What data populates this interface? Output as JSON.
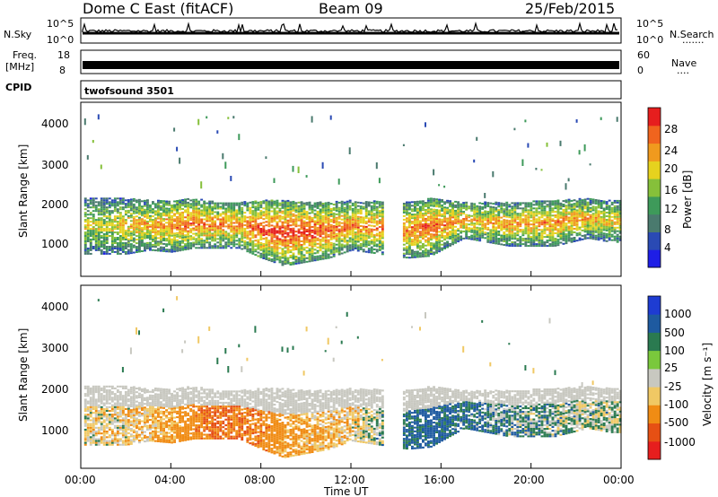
{
  "header": {
    "station": "Dome C East (fitACF)",
    "beam": "Beam 09",
    "date": "25/Feb/2015"
  },
  "sky_panel": {
    "left_label": "N.Sky",
    "right_label": "N.Search",
    "right_dots": ".......",
    "left_ticks": [
      "10^5",
      "10^0"
    ],
    "right_ticks": [
      "10^5",
      "10^0"
    ]
  },
  "freq_panel": {
    "left_label_1": "Freq.",
    "left_label_2": "[MHz]",
    "left_ticks": [
      "18",
      "8"
    ],
    "right_label": "Nave",
    "right_dots": "....",
    "right_ticks": [
      "60",
      "0"
    ]
  },
  "cpid_panel": {
    "left_label": "CPID",
    "program": "twofsound 3501"
  },
  "power_panel": {
    "ylabel": "Slant Range [km]",
    "yticks": [
      "4000",
      "3000",
      "2000",
      "1000"
    ],
    "colorbar_label": "Power [dB]",
    "colorbar_ticks": [
      "28",
      "24",
      "20",
      "16",
      "12",
      "8",
      "4"
    ]
  },
  "velocity_panel": {
    "ylabel": "Slant Range [km]",
    "yticks": [
      "4000",
      "3000",
      "2000",
      "1000"
    ],
    "colorbar_label": "Velocity  [m s⁻¹]",
    "colorbar_ticks": [
      "1000",
      "500",
      "100",
      "25",
      "-25",
      "-100",
      "-500",
      "-1000"
    ]
  },
  "x_axis": {
    "label": "Time UT",
    "ticks": [
      "00:00",
      "04:00",
      "08:00",
      "12:00",
      "16:00",
      "20:00",
      "00:00"
    ]
  },
  "chart_data": [
    {
      "type": "heatmap",
      "title": "Dome C East (fitACF)",
      "xlabel": "Time UT",
      "ylabel": "Slant Range [km]",
      "colorbar": "Power [dB]",
      "xlim_hours": [
        0,
        24
      ],
      "ylim": [
        200,
        4500
      ],
      "zlim": [
        0,
        30
      ],
      "colors": [
        "#1e1ee6",
        "#2a4ab4",
        "#4a7a6e",
        "#3e9a5a",
        "#86c03a",
        "#e6d21e",
        "#f09a1e",
        "#f0641e",
        "#e61e1e"
      ],
      "hours": [
        1,
        2,
        3,
        4,
        5,
        6,
        7,
        8,
        9,
        10,
        11,
        12,
        14.5,
        15.5,
        17,
        19,
        21,
        22.5,
        23.5
      ],
      "echo_top_km": [
        2100,
        2100,
        2050,
        2050,
        2100,
        2000,
        2000,
        2050,
        2050,
        2000,
        2000,
        2050,
        2000,
        2100,
        2000,
        2000,
        2050,
        2100,
        2050
      ],
      "echo_bottom_km": [
        700,
        700,
        800,
        750,
        850,
        850,
        850,
        600,
        400,
        500,
        600,
        800,
        600,
        650,
        1100,
        900,
        900,
        1100,
        1000
      ],
      "peak_power_db": [
        18,
        20,
        22,
        24,
        26,
        24,
        24,
        28,
        28,
        28,
        26,
        24,
        24,
        26,
        22,
        22,
        24,
        22,
        20
      ],
      "data_gap_hours": [
        13.4,
        14.2
      ]
    },
    {
      "type": "heatmap",
      "title": "Dome C East (fitACF)",
      "xlabel": "Time UT",
      "ylabel": "Slant Range [km]",
      "colorbar": "Velocity  [m s⁻¹]",
      "xlim_hours": [
        0,
        24
      ],
      "ylim": [
        200,
        4500
      ],
      "zlim": [
        -1000,
        1000
      ],
      "colors": [
        "#1e3cd2",
        "#1e5aa0",
        "#2a7a50",
        "#7ac83c",
        "#c8c8c0",
        "#f0c864",
        "#f08c14",
        "#e65014",
        "#e61e1e"
      ],
      "hours": [
        1,
        2,
        3,
        4,
        5,
        6,
        7,
        8,
        9,
        10,
        11,
        12,
        14.5,
        15.5,
        17,
        19,
        21,
        22.5,
        23.5
      ],
      "echo_top_km": [
        2100,
        2100,
        2050,
        2050,
        2100,
        2000,
        2000,
        2050,
        2050,
        2000,
        2000,
        2050,
        2000,
        2100,
        2000,
        2000,
        2050,
        2100,
        2050
      ],
      "echo_bottom_km": [
        700,
        700,
        800,
        750,
        850,
        850,
        850,
        600,
        400,
        500,
        600,
        800,
        600,
        650,
        1100,
        900,
        900,
        1100,
        1000
      ],
      "mean_velocity": [
        -40,
        -60,
        -80,
        -120,
        -250,
        -300,
        -300,
        -250,
        -150,
        -100,
        -80,
        -60,
        120,
        150,
        100,
        60,
        40,
        20,
        10
      ],
      "data_gap_hours": [
        13.4,
        14.2
      ]
    }
  ]
}
